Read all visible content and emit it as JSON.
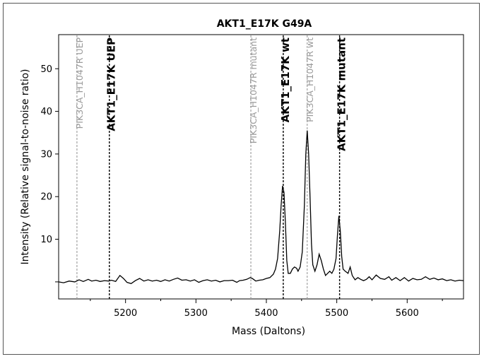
{
  "chart_data": {
    "type": "line",
    "title": "AKT1_E17K G49A",
    "xlabel": "Mass (Daltons)",
    "ylabel": "Intensity (Relative signal-to-noise ratio)",
    "xlim": [
      5105,
      5680
    ],
    "ylim": [
      -4,
      58
    ],
    "xticks": [
      5200,
      5300,
      5400,
      5500,
      5600
    ],
    "yticks": [
      10,
      20,
      30,
      40,
      50
    ],
    "grid": false,
    "series": [
      {
        "color": "#000000",
        "points": [
          [
            5105,
            0
          ],
          [
            5112,
            -0.2
          ],
          [
            5120,
            0.2
          ],
          [
            5128,
            0
          ],
          [
            5134,
            0.5
          ],
          [
            5140,
            0.1
          ],
          [
            5147,
            0.6
          ],
          [
            5152,
            0.2
          ],
          [
            5158,
            0.4
          ],
          [
            5164,
            0.1
          ],
          [
            5170,
            0.3
          ],
          [
            5176,
            0.2
          ],
          [
            5180,
            0.4
          ],
          [
            5186,
            0.1
          ],
          [
            5192,
            1.5
          ],
          [
            5197,
            0.8
          ],
          [
            5202,
            -0.1
          ],
          [
            5208,
            -0.4
          ],
          [
            5214,
            0.3
          ],
          [
            5220,
            0.8
          ],
          [
            5226,
            0.2
          ],
          [
            5232,
            0.5
          ],
          [
            5238,
            0.2
          ],
          [
            5244,
            0.4
          ],
          [
            5250,
            0.1
          ],
          [
            5256,
            0.5
          ],
          [
            5262,
            0.2
          ],
          [
            5268,
            0.6
          ],
          [
            5274,
            0.9
          ],
          [
            5280,
            0.4
          ],
          [
            5286,
            0.5
          ],
          [
            5292,
            0.2
          ],
          [
            5298,
            0.5
          ],
          [
            5304,
            -0.1
          ],
          [
            5310,
            0.3
          ],
          [
            5316,
            0.5
          ],
          [
            5322,
            0.2
          ],
          [
            5328,
            0.4
          ],
          [
            5334,
            0
          ],
          [
            5340,
            0.3
          ],
          [
            5346,
            0.3
          ],
          [
            5352,
            0.4
          ],
          [
            5358,
            -0.1
          ],
          [
            5362,
            0.3
          ],
          [
            5367,
            0.4
          ],
          [
            5372,
            0.6
          ],
          [
            5377,
            1.0
          ],
          [
            5380,
            0.8
          ],
          [
            5385,
            0.2
          ],
          [
            5390,
            0.4
          ],
          [
            5395,
            0.5
          ],
          [
            5400,
            0.8
          ],
          [
            5405,
            1.0
          ],
          [
            5410,
            1.8
          ],
          [
            5413,
            3.0
          ],
          [
            5416,
            5.5
          ],
          [
            5419,
            12.0
          ],
          [
            5421,
            18.0
          ],
          [
            5423,
            22.5
          ],
          [
            5425,
            21.0
          ],
          [
            5427,
            14.0
          ],
          [
            5429,
            5.0
          ],
          [
            5431,
            2.0
          ],
          [
            5434,
            2.0
          ],
          [
            5437,
            3.0
          ],
          [
            5440,
            3.5
          ],
          [
            5443,
            3.2
          ],
          [
            5445,
            2.5
          ],
          [
            5448,
            3.5
          ],
          [
            5451,
            7.0
          ],
          [
            5454,
            18.0
          ],
          [
            5456,
            30.0
          ],
          [
            5458,
            35.5
          ],
          [
            5460,
            30.0
          ],
          [
            5462,
            20.0
          ],
          [
            5464,
            9.0
          ],
          [
            5466,
            4.0
          ],
          [
            5469,
            2.5
          ],
          [
            5472,
            4.0
          ],
          [
            5475,
            6.5
          ],
          [
            5478,
            5.0
          ],
          [
            5481,
            3.0
          ],
          [
            5484,
            1.5
          ],
          [
            5487,
            2.0
          ],
          [
            5490,
            2.5
          ],
          [
            5493,
            2.0
          ],
          [
            5496,
            3.0
          ],
          [
            5499,
            5.5
          ],
          [
            5501,
            11.0
          ],
          [
            5503,
            15.5
          ],
          [
            5505,
            12.0
          ],
          [
            5507,
            6.0
          ],
          [
            5509,
            3.0
          ],
          [
            5512,
            2.5
          ],
          [
            5516,
            2.0
          ],
          [
            5519,
            3.5
          ],
          [
            5522,
            1.5
          ],
          [
            5526,
            0.5
          ],
          [
            5530,
            1.0
          ],
          [
            5534,
            0.6
          ],
          [
            5538,
            0.3
          ],
          [
            5542,
            0.6
          ],
          [
            5546,
            1.2
          ],
          [
            5550,
            0.5
          ],
          [
            5556,
            1.6
          ],
          [
            5562,
            0.8
          ],
          [
            5568,
            0.6
          ],
          [
            5574,
            1.2
          ],
          [
            5578,
            0.4
          ],
          [
            5584,
            1.0
          ],
          [
            5590,
            0.3
          ],
          [
            5596,
            1.0
          ],
          [
            5602,
            0.2
          ],
          [
            5608,
            0.8
          ],
          [
            5614,
            0.5
          ],
          [
            5620,
            0.6
          ],
          [
            5626,
            1.2
          ],
          [
            5632,
            0.6
          ],
          [
            5638,
            0.9
          ],
          [
            5644,
            0.5
          ],
          [
            5650,
            0.7
          ],
          [
            5656,
            0.3
          ],
          [
            5662,
            0.5
          ],
          [
            5668,
            0.2
          ],
          [
            5674,
            0.4
          ],
          [
            5680,
            0.3
          ]
        ]
      }
    ],
    "markers": [
      {
        "label": "PIK3CA_H1047R UEP",
        "x": 5131,
        "color": "#9a9a9a",
        "weight": "normal",
        "font_size": 12.5
      },
      {
        "label": "AKT1_E17K UEP",
        "x": 5177,
        "color": "#000000",
        "weight": "bold",
        "font_size": 15
      },
      {
        "label": "PIK3CA_H1047R mutant",
        "x": 5378,
        "color": "#9a9a9a",
        "weight": "normal",
        "font_size": 12.5
      },
      {
        "label": "AKT1_E17K wt",
        "x": 5424,
        "color": "#000000",
        "weight": "bold",
        "font_size": 15
      },
      {
        "label": "PIK3CA_H1047R wt",
        "x": 5458,
        "color": "#9a9a9a",
        "weight": "normal",
        "font_size": 12.5
      },
      {
        "label": "AKT1_E17K mutant",
        "x": 5504,
        "color": "#000000",
        "weight": "bold",
        "font_size": 15
      }
    ]
  }
}
